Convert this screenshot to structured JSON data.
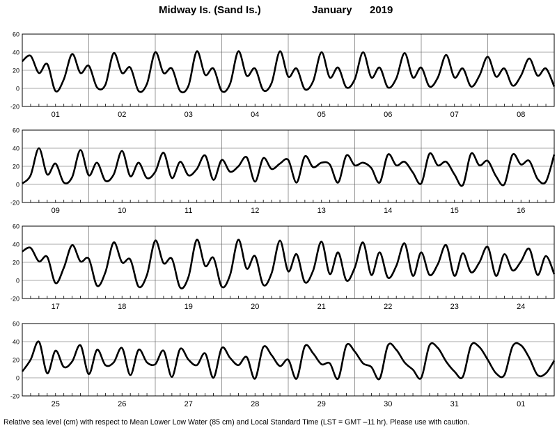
{
  "title": {
    "location": "Midway Is. (Sand Is.)",
    "month": "January",
    "year": "2019"
  },
  "footnote": "Relative sea level (cm) with respect to Mean Lower Low Water (85 cm) and Local Standard Time (LST = GMT –11 hr). Please use with caution.",
  "chart_data": [
    {
      "type": "line",
      "ylim": [
        -20,
        60
      ],
      "yticks": [
        -20,
        0,
        20,
        40,
        60
      ],
      "grid": true,
      "categories": [
        "01",
        "02",
        "03",
        "04",
        "05",
        "06",
        "07",
        "08"
      ],
      "series": [
        {
          "x": [
            0,
            0.125,
            0.25,
            0.375,
            0.5,
            0.625,
            0.75,
            0.875,
            1,
            1.125,
            1.25,
            1.375,
            1.5,
            1.625,
            1.75,
            1.875,
            2,
            2.125,
            2.25,
            2.375,
            2.5,
            2.625,
            2.75,
            2.875,
            3,
            3.125,
            3.25,
            3.375,
            3.5,
            3.625,
            3.75,
            3.875,
            4,
            4.125,
            4.25,
            4.375,
            4.5,
            4.625,
            4.75,
            4.875,
            5,
            5.125,
            5.25,
            5.375,
            5.5,
            5.625,
            5.75,
            5.875,
            6,
            6.125,
            6.25,
            6.375,
            6.5,
            6.625,
            6.75,
            6.875,
            7,
            7.125,
            7.25,
            7.375,
            7.5,
            7.625,
            7.75,
            7.875,
            8
          ],
          "y": [
            30,
            36,
            17,
            27,
            -3,
            10,
            38,
            17,
            25,
            1,
            4,
            39,
            17,
            23,
            -3,
            5,
            40,
            17,
            22,
            -3,
            3,
            41,
            15,
            22,
            -3,
            5,
            41,
            14,
            22,
            -2,
            6,
            41,
            13,
            22,
            -1,
            8,
            40,
            12,
            23,
            1,
            10,
            40,
            12,
            23,
            1,
            11,
            39,
            12,
            23,
            2,
            12,
            37,
            12,
            22,
            2,
            14,
            35,
            13,
            22,
            3,
            14,
            33,
            14,
            22,
            2
          ]
        }
      ]
    },
    {
      "type": "line",
      "ylim": [
        -20,
        60
      ],
      "yticks": [
        -20,
        0,
        20,
        40,
        60
      ],
      "grid": true,
      "categories": [
        "09",
        "10",
        "11",
        "12",
        "13",
        "14",
        "15",
        "16"
      ],
      "series": [
        {
          "x": [
            0,
            0.125,
            0.25,
            0.375,
            0.5,
            0.625,
            0.75,
            0.875,
            1,
            1.125,
            1.25,
            1.375,
            1.5,
            1.625,
            1.75,
            1.875,
            2,
            2.125,
            2.25,
            2.375,
            2.5,
            2.625,
            2.75,
            2.875,
            3,
            3.125,
            3.25,
            3.375,
            3.5,
            3.625,
            3.75,
            3.875,
            4,
            4.125,
            4.25,
            4.375,
            4.5,
            4.625,
            4.75,
            4.875,
            5,
            5.125,
            5.25,
            5.375,
            5.5,
            5.625,
            5.75,
            5.875,
            6,
            6.125,
            6.25,
            6.375,
            6.5,
            6.625,
            6.75,
            6.875,
            7,
            7.125,
            7.25,
            7.375,
            7.5,
            7.625,
            7.75,
            7.875,
            8
          ],
          "y": [
            1,
            10,
            40,
            11,
            23,
            2,
            8,
            38,
            10,
            24,
            4,
            11,
            37,
            9,
            24,
            7,
            14,
            35,
            7,
            25,
            10,
            17,
            32,
            5,
            27,
            14,
            20,
            30,
            3,
            29,
            17,
            23,
            27,
            2,
            31,
            19,
            24,
            22,
            2,
            32,
            21,
            24,
            18,
            2,
            33,
            21,
            25,
            13,
            1,
            34,
            21,
            25,
            11,
            -1,
            34,
            21,
            26,
            9,
            0,
            33,
            22,
            26,
            6,
            3,
            33
          ]
        }
      ]
    },
    {
      "type": "line",
      "ylim": [
        -20,
        60
      ],
      "yticks": [
        -20,
        0,
        20,
        40,
        60
      ],
      "grid": true,
      "categories": [
        "17",
        "18",
        "19",
        "20",
        "21",
        "22",
        "23",
        "24"
      ],
      "series": [
        {
          "x": [
            0,
            0.125,
            0.25,
            0.375,
            0.5,
            0.625,
            0.75,
            0.875,
            1,
            1.125,
            1.25,
            1.375,
            1.5,
            1.625,
            1.75,
            1.875,
            2,
            2.125,
            2.25,
            2.375,
            2.5,
            2.625,
            2.75,
            2.875,
            3,
            3.125,
            3.25,
            3.375,
            3.5,
            3.625,
            3.75,
            3.875,
            4,
            4.125,
            4.25,
            4.375,
            4.5,
            4.625,
            4.75,
            4.875,
            5,
            5.125,
            5.25,
            5.375,
            5.5,
            5.625,
            5.75,
            5.875,
            6,
            6.125,
            6.25,
            6.375,
            6.5,
            6.625,
            6.75,
            6.875,
            7,
            7.125,
            7.25,
            7.375,
            7.5,
            7.625,
            7.75,
            7.875,
            8
          ],
          "y": [
            32,
            36,
            21,
            26,
            -3,
            14,
            39,
            21,
            24,
            -6,
            9,
            42,
            20,
            23,
            -7,
            6,
            44,
            19,
            24,
            -8,
            4,
            45,
            16,
            25,
            -7,
            6,
            45,
            13,
            27,
            -5,
            8,
            44,
            10,
            29,
            -2,
            11,
            43,
            7,
            31,
            0,
            14,
            42,
            6,
            31,
            3,
            16,
            41,
            5,
            31,
            6,
            18,
            39,
            5,
            30,
            9,
            20,
            37,
            5,
            29,
            11,
            21,
            35,
            6,
            27,
            7
          ]
        }
      ]
    },
    {
      "type": "line",
      "ylim": [
        -20,
        60
      ],
      "yticks": [
        -20,
        0,
        20,
        40,
        60
      ],
      "grid": true,
      "categories": [
        "25",
        "26",
        "27",
        "28",
        "29",
        "30",
        "31",
        "01"
      ],
      "series": [
        {
          "x": [
            0,
            0.125,
            0.25,
            0.375,
            0.5,
            0.625,
            0.75,
            0.875,
            1,
            1.125,
            1.25,
            1.375,
            1.5,
            1.625,
            1.75,
            1.875,
            2,
            2.125,
            2.25,
            2.375,
            2.5,
            2.625,
            2.75,
            2.875,
            3,
            3.125,
            3.25,
            3.375,
            3.5,
            3.625,
            3.75,
            3.875,
            4,
            4.125,
            4.25,
            4.375,
            4.5,
            4.625,
            4.75,
            4.875,
            5,
            5.125,
            5.25,
            5.375,
            5.5,
            5.625,
            5.75,
            5.875,
            6,
            6.125,
            6.25,
            6.375,
            6.5,
            6.625,
            6.75,
            6.875,
            7,
            7.125,
            7.25,
            7.375,
            7.5,
            7.625,
            7.75,
            7.875,
            8
          ],
          "y": [
            7,
            20,
            40,
            5,
            30,
            12,
            18,
            36,
            4,
            31,
            14,
            17,
            33,
            3,
            31,
            17,
            15,
            30,
            1,
            32,
            20,
            14,
            27,
            0,
            33,
            22,
            14,
            23,
            -1,
            34,
            25,
            13,
            20,
            -1,
            35,
            27,
            15,
            16,
            -1,
            36,
            29,
            16,
            12,
            -1,
            36,
            31,
            17,
            9,
            0,
            36,
            33,
            18,
            7,
            1,
            36,
            34,
            20,
            5,
            3,
            35,
            36,
            22,
            3,
            5,
            19
          ]
        }
      ]
    }
  ]
}
